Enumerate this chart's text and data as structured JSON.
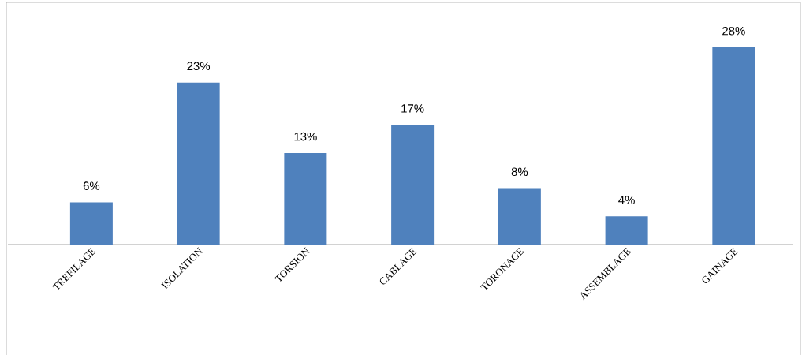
{
  "chart_data": {
    "type": "bar",
    "categories": [
      "TREFILAGE",
      "ISOLATION",
      "TORSION",
      "CABLAGE",
      "TORONAGE",
      "ASSEMBLAGE",
      "GAINAGE"
    ],
    "values": [
      6,
      23,
      13,
      17,
      8,
      4,
      28
    ],
    "value_labels": [
      "6%",
      "23%",
      "13%",
      "17%",
      "8%",
      "4%",
      "28%"
    ],
    "color": "#4f81bd"
  }
}
